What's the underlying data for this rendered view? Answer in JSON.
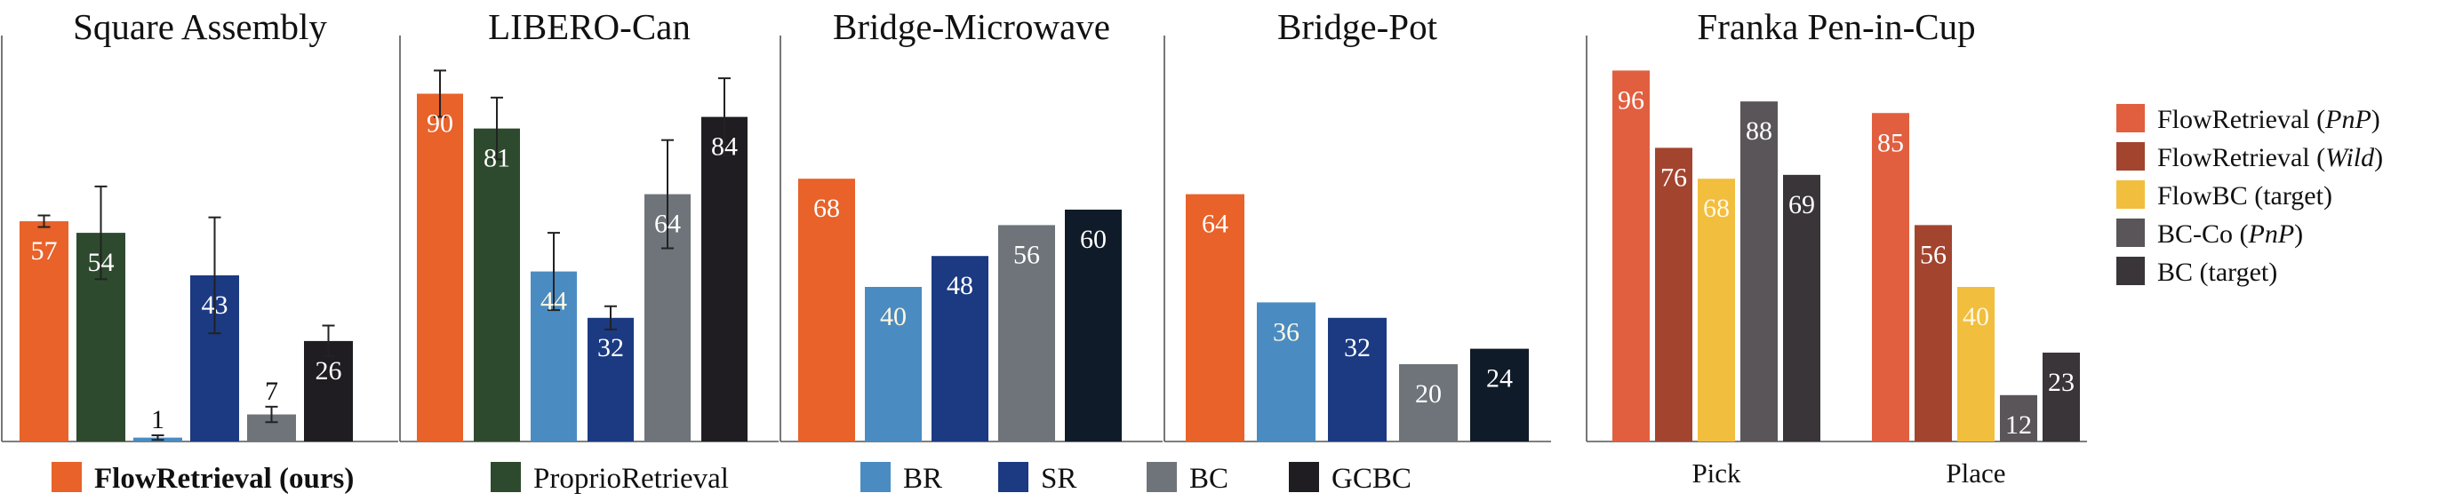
{
  "chart_data": [
    {
      "type": "bar",
      "title": "Square Assembly",
      "ylim": [
        0,
        100
      ],
      "bars": [
        {
          "series": "FlowRetrieval (ours)",
          "value": 57,
          "err": 1.5
        },
        {
          "series": "ProprioRetrieval",
          "value": 54,
          "err": 12
        },
        {
          "series": "BR",
          "value": 1,
          "err": 0.6
        },
        {
          "series": "SR",
          "value": 43,
          "err": 15
        },
        {
          "series": "BC",
          "value": 7,
          "err": 2
        },
        {
          "series": "GCBC",
          "value": 26,
          "err": 4
        }
      ]
    },
    {
      "type": "bar",
      "title": "LIBERO-Can",
      "ylim": [
        0,
        100
      ],
      "bars": [
        {
          "series": "FlowRetrieval (ours)",
          "value": 90,
          "err": 6
        },
        {
          "series": "ProprioRetrieval",
          "value": 81,
          "err": 8
        },
        {
          "series": "BR",
          "value": 44,
          "err": 10
        },
        {
          "series": "SR",
          "value": 32,
          "err": 3
        },
        {
          "series": "BC",
          "value": 64,
          "err": 14
        },
        {
          "series": "GCBC",
          "value": 84,
          "err": 10
        }
      ]
    },
    {
      "type": "bar",
      "title": "Bridge-Microwave",
      "ylim": [
        0,
        100
      ],
      "bars": [
        {
          "series": "FlowRetrieval (ours)",
          "value": 68
        },
        {
          "series": "BR",
          "value": 40
        },
        {
          "series": "SR",
          "value": 48
        },
        {
          "series": "BC",
          "value": 56
        },
        {
          "series": "GCBC",
          "value": 60
        }
      ]
    },
    {
      "type": "bar",
      "title": "Bridge-Pot",
      "ylim": [
        0,
        100
      ],
      "bars": [
        {
          "series": "FlowRetrieval (ours)",
          "value": 64
        },
        {
          "series": "BR",
          "value": 36
        },
        {
          "series": "SR",
          "value": 32
        },
        {
          "series": "BC",
          "value": 20
        },
        {
          "series": "GCBC",
          "value": 24
        }
      ]
    },
    {
      "type": "bar",
      "title": "Franka Pen-in-Cup",
      "ylim": [
        0,
        100
      ],
      "categories": [
        "Pick",
        "Place"
      ],
      "series": [
        {
          "name": "FlowRetrieval (PnP)",
          "values": [
            96,
            85
          ]
        },
        {
          "name": "FlowRetrieval (Wild)",
          "values": [
            76,
            56
          ]
        },
        {
          "name": "FlowBC (target)",
          "values": [
            68,
            40
          ]
        },
        {
          "name": "BC-Co (PnP)",
          "values": [
            88,
            12
          ]
        },
        {
          "name": "BC (target)",
          "values": [
            69,
            23
          ]
        }
      ]
    }
  ],
  "colors": {
    "FlowRetrieval (ours)": "#e8622a",
    "ProprioRetrieval": "#2e4a2e",
    "BR": "#4a8cc2",
    "SR": "#1b3a82",
    "BC": "#6e747a",
    "GCBC": "#1f1c22",
    "Bridge-GCBC": "#0f1b28",
    "FlowRetrieval (PnP)": "#e15f3f",
    "FlowRetrieval (Wild)": "#a3442f",
    "FlowBC (target)": "#f2be3e",
    "BC-Co (PnP)": "#5a5558",
    "BC (target)": "#393539"
  },
  "legend_bottom": [
    {
      "label": "FlowRetrieval (ours)",
      "bold": true
    },
    {
      "label": "ProprioRetrieval",
      "bold": false
    },
    {
      "label": "BR",
      "bold": false
    },
    {
      "label": "SR",
      "bold": false
    },
    {
      "label": "BC",
      "bold": false
    },
    {
      "label": "GCBC",
      "bold": false
    }
  ],
  "legend_right": [
    {
      "series": "FlowRetrieval (PnP)",
      "prefix": "FlowRetrieval (",
      "italic": "PnP",
      "suffix": ")"
    },
    {
      "series": "FlowRetrieval (Wild)",
      "prefix": "FlowRetrieval (",
      "italic": "Wild",
      "suffix": ")"
    },
    {
      "series": "FlowBC (target)",
      "prefix": "FlowBC (target)",
      "italic": "",
      "suffix": ""
    },
    {
      "series": "BC-Co (PnP)",
      "prefix": "BC-Co (",
      "italic": "PnP",
      "suffix": ")"
    },
    {
      "series": "BC (target)",
      "prefix": "BC (target)",
      "italic": "",
      "suffix": ""
    }
  ]
}
